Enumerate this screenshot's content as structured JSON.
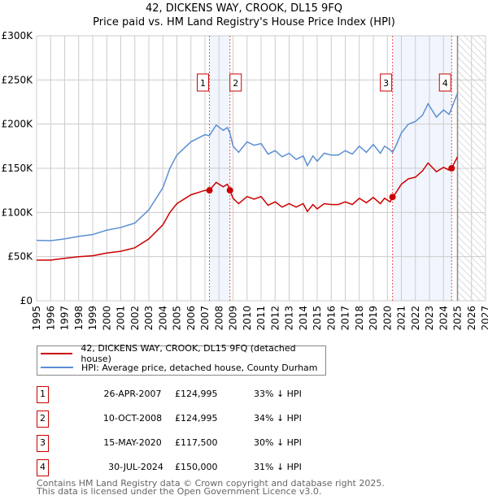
{
  "title": "42, DICKENS WAY, CROOK, DL15 9FQ",
  "subtitle": "Price paid vs. HM Land Registry's House Price Index (HPI)",
  "chart_data": {
    "type": "line",
    "title": "42, DICKENS WAY, CROOK, DL15 9FQ",
    "subtitle": "Price paid vs. HM Land Registry's House Price Index (HPI)",
    "xlim": [
      1995,
      2027
    ],
    "ylim": [
      0,
      300000
    ],
    "x_ticks": [
      "1995",
      "1996",
      "1997",
      "1998",
      "1999",
      "2000",
      "2001",
      "2002",
      "2003",
      "2004",
      "2005",
      "2006",
      "2007",
      "2008",
      "2009",
      "2010",
      "2011",
      "2012",
      "2013",
      "2014",
      "2015",
      "2016",
      "2017",
      "2018",
      "2019",
      "2020",
      "2021",
      "2022",
      "2023",
      "2024",
      "2025",
      "2026",
      "2027"
    ],
    "y_ticks": [
      {
        "v": 0,
        "label": "£0"
      },
      {
        "v": 50000,
        "label": "£50K"
      },
      {
        "v": 100000,
        "label": "£100K"
      },
      {
        "v": 150000,
        "label": "£150K"
      },
      {
        "v": 200000,
        "label": "£200K"
      },
      {
        "v": 250000,
        "label": "£250K"
      },
      {
        "v": 300000,
        "label": "£300K"
      }
    ],
    "grid": true,
    "forecast_start": 2025,
    "series": [
      {
        "name": "42, DICKENS WAY, CROOK, DL15 9FQ (detached house)",
        "color": "#cc0000",
        "x": [
          1995,
          1996,
          1997,
          1998,
          1999,
          2000,
          2001,
          2002,
          2003,
          2004,
          2004.5,
          2005,
          2006,
          2007,
          2007.32,
          2007.8,
          2008.3,
          2008.6,
          2008.78,
          2009,
          2009.4,
          2010,
          2010.5,
          2011,
          2011.5,
          2012,
          2012.5,
          2013,
          2013.5,
          2014,
          2014.3,
          2014.7,
          2015,
          2015.5,
          2016,
          2016.5,
          2017,
          2017.5,
          2018,
          2018.5,
          2019,
          2019.5,
          2019.8,
          2020.2,
          2020.37,
          2020.6,
          2021,
          2021.5,
          2022,
          2022.5,
          2022.9,
          2023.5,
          2024,
          2024.4,
          2024.58,
          2025
        ],
        "y": [
          46000,
          46000,
          48000,
          50000,
          51000,
          54000,
          56000,
          60000,
          70000,
          86000,
          100000,
          110000,
          120000,
          125000,
          124995,
          134000,
          129000,
          132000,
          124995,
          116000,
          110000,
          118000,
          115000,
          118000,
          108000,
          112000,
          106000,
          110000,
          106000,
          110000,
          101000,
          109000,
          104000,
          110000,
          109000,
          109000,
          112000,
          109000,
          116000,
          111000,
          117000,
          110000,
          116000,
          112000,
          117500,
          122000,
          132000,
          138000,
          140000,
          147000,
          156000,
          146000,
          151000,
          148000,
          150000,
          163000
        ]
      },
      {
        "name": "HPI: Average price, detached house, County Durham",
        "color": "#5b8fd4",
        "x": [
          1995,
          1996,
          1997,
          1998,
          1999,
          2000,
          2001,
          2002,
          2003,
          2004,
          2004.5,
          2005,
          2006,
          2007,
          2007.32,
          2007.8,
          2008.3,
          2008.6,
          2008.78,
          2009,
          2009.4,
          2010,
          2010.5,
          2011,
          2011.5,
          2012,
          2012.5,
          2013,
          2013.5,
          2014,
          2014.3,
          2014.7,
          2015,
          2015.5,
          2016,
          2016.5,
          2017,
          2017.5,
          2018,
          2018.5,
          2019,
          2019.5,
          2019.8,
          2020.2,
          2020.37,
          2020.6,
          2021,
          2021.5,
          2022,
          2022.5,
          2022.9,
          2023.5,
          2024,
          2024.4,
          2024.58,
          2025
        ],
        "y": [
          68500,
          68000,
          70000,
          73000,
          75000,
          80000,
          83000,
          88000,
          103000,
          128000,
          150000,
          165000,
          180000,
          188000,
          187000,
          199000,
          193000,
          196000,
          190000,
          175000,
          168000,
          180000,
          176000,
          178000,
          166000,
          170000,
          163000,
          167000,
          160000,
          164000,
          153000,
          164000,
          158000,
          167000,
          165000,
          165000,
          170000,
          166000,
          175000,
          168000,
          177000,
          167000,
          175000,
          171000,
          168000,
          175000,
          190000,
          200000,
          203000,
          210000,
          223000,
          208000,
          216000,
          211000,
          218000,
          235000
        ]
      }
    ],
    "sales": [
      {
        "label": "1",
        "x": 2007.32,
        "y": 124995
      },
      {
        "label": "2",
        "x": 2008.78,
        "y": 124995
      },
      {
        "label": "3",
        "x": 2020.37,
        "y": 117500
      },
      {
        "label": "4",
        "x": 2024.58,
        "y": 150000
      }
    ],
    "shaded_ranges": [
      [
        2007.32,
        2008.78
      ],
      [
        2020.37,
        2024.58
      ]
    ]
  },
  "legend": {
    "property": "42, DICKENS WAY, CROOK, DL15 9FQ (detached house)",
    "hpi": "HPI: Average price, detached house, County Durham"
  },
  "transactions": [
    {
      "num": "1",
      "date": "26-APR-2007",
      "price": "£124,995",
      "hpi": "33% ↓ HPI"
    },
    {
      "num": "2",
      "date": "10-OCT-2008",
      "price": "£124,995",
      "hpi": "34% ↓ HPI"
    },
    {
      "num": "3",
      "date": "15-MAY-2020",
      "price": "£117,500",
      "hpi": "30% ↓ HPI"
    },
    {
      "num": "4",
      "date": "30-JUL-2024",
      "price": "£150,000",
      "hpi": "31% ↓ HPI"
    }
  ],
  "footer": {
    "line1": "Contains HM Land Registry data © Crown copyright and database right 2025.",
    "line2": "This data is licensed under the Open Government Licence v3.0."
  }
}
